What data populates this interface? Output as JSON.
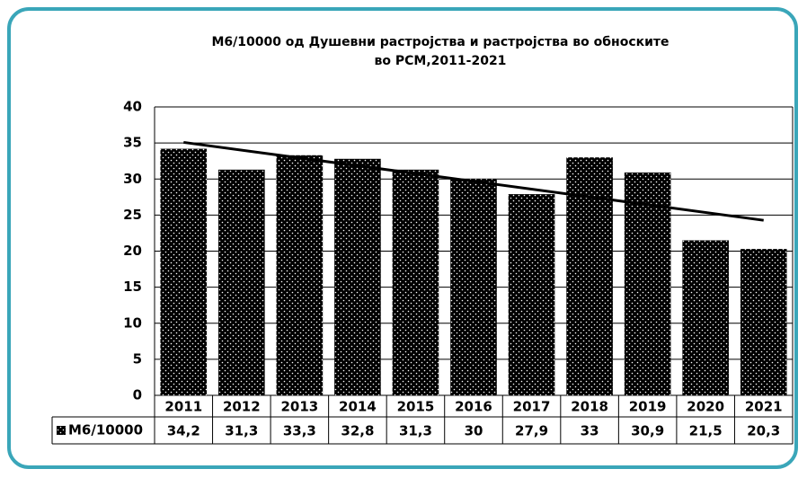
{
  "chart_data": {
    "type": "bar",
    "title": [
      "М6/10000 од Душевни растројства и растројства во обноските",
      "во РСМ,2011-2021"
    ],
    "categories": [
      "2011",
      "2012",
      "2013",
      "2014",
      "2015",
      "2016",
      "2017",
      "2018",
      "2019",
      "2020",
      "2021"
    ],
    "series": [
      {
        "name": "М6/10000",
        "color": "#000000",
        "values": [
          34.2,
          31.3,
          33.3,
          32.8,
          31.3,
          30,
          27.9,
          33,
          30.9,
          21.5,
          20.3
        ],
        "value_labels": [
          "34,2",
          "31,3",
          "33,3",
          "32,8",
          "31,3",
          "30",
          "27,9",
          "33",
          "30,9",
          "21,5",
          "20,3"
        ]
      }
    ],
    "ylim": [
      0,
      40
    ],
    "yticks": [
      0,
      5,
      10,
      15,
      20,
      25,
      30,
      35,
      40
    ],
    "grid": true,
    "trendline": "linear"
  }
}
